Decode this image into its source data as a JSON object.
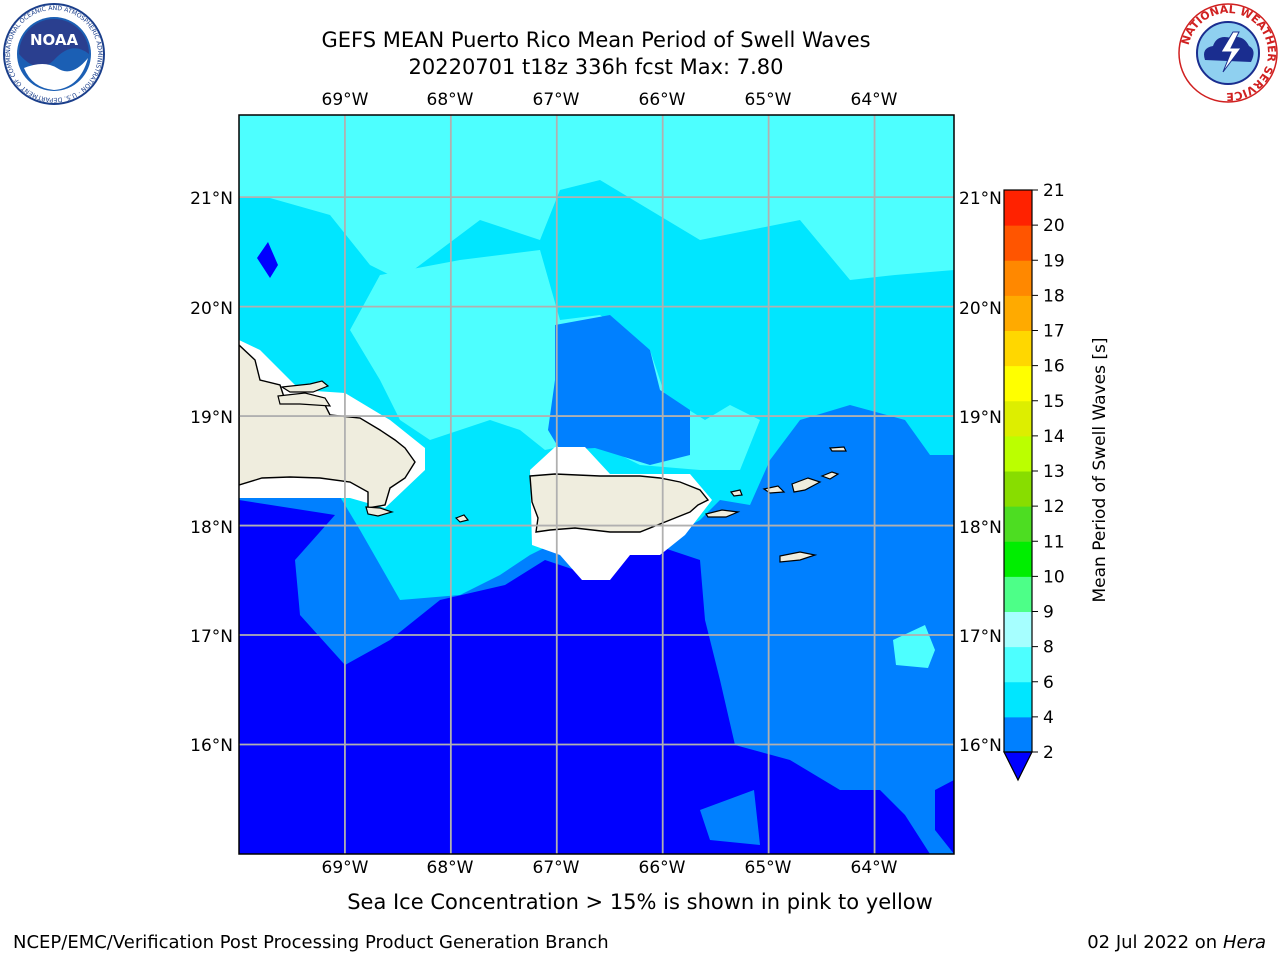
{
  "header": {
    "title_line1": "GEFS MEAN Puerto Rico Mean Period of Swell Waves",
    "title_line2": "20220701 t18z 336h fcst   Max: 7.80"
  },
  "logos": {
    "noaa": {
      "text": "NOAA",
      "ring_text": "NATIONAL OCEANIC AND ATMOSPHERIC ADMINISTRATION · U.S. DEPARTMENT OF COMMERCE"
    },
    "nws": {
      "ring_text": "NATIONAL WEATHER SERVICE"
    }
  },
  "map": {
    "lon_labels": [
      "69°W",
      "68°W",
      "67°W",
      "66°W",
      "65°W",
      "64°W"
    ],
    "lat_labels": [
      "21°N",
      "20°N",
      "19°N",
      "18°N",
      "17°N",
      "16°N"
    ],
    "lon_values": [
      -69,
      -68,
      -67,
      -66,
      -65,
      -64
    ],
    "lat_values": [
      21,
      20,
      19,
      18,
      17,
      16
    ],
    "extent": {
      "lon": [
        -70,
        -63.25
      ],
      "lat": [
        15,
        21.75
      ]
    },
    "land_color": "#efedde",
    "grid_color": "#b0b0b0"
  },
  "colorbar": {
    "label": "Mean Period of Swell Waves [s]",
    "ticks": [
      "21",
      "20",
      "19",
      "18",
      "17",
      "16",
      "15",
      "14",
      "13",
      "12",
      "11",
      "10",
      "9",
      "8",
      "6",
      "4",
      "2"
    ],
    "bins": [
      {
        "from": 2,
        "to": 4,
        "color": "#0080ff"
      },
      {
        "from": 4,
        "to": 6,
        "color": "#00e6ff"
      },
      {
        "from": 6,
        "to": 8,
        "color": "#4dffff"
      },
      {
        "from": 8,
        "to": 9,
        "color": "#a6ffff"
      },
      {
        "from": 9,
        "to": 10,
        "color": "#4dff88"
      },
      {
        "from": 10,
        "to": 11,
        "color": "#00ee00"
      },
      {
        "from": 11,
        "to": 12,
        "color": "#4ddd22"
      },
      {
        "from": 12,
        "to": 13,
        "color": "#88dd00"
      },
      {
        "from": 13,
        "to": 14,
        "color": "#bbff00"
      },
      {
        "from": 14,
        "to": 15,
        "color": "#ddee00"
      },
      {
        "from": 15,
        "to": 16,
        "color": "#ffff00"
      },
      {
        "from": 16,
        "to": 17,
        "color": "#ffd700"
      },
      {
        "from": 17,
        "to": 18,
        "color": "#ffaa00"
      },
      {
        "from": 18,
        "to": 19,
        "color": "#ff8800"
      },
      {
        "from": 19,
        "to": 20,
        "color": "#ff5500"
      },
      {
        "from": 20,
        "to": 21,
        "color": "#ff2200"
      }
    ],
    "under_color": "#0000ff",
    "over_color": "#ff0000"
  },
  "subtitle": "Sea Ice Concentration > 15% is shown in pink to yellow",
  "footer": {
    "left": "NCEP/EMC/Verification Post Processing Product Generation Branch",
    "right_date": "02 Jul 2022 on ",
    "right_host": "Hera"
  }
}
